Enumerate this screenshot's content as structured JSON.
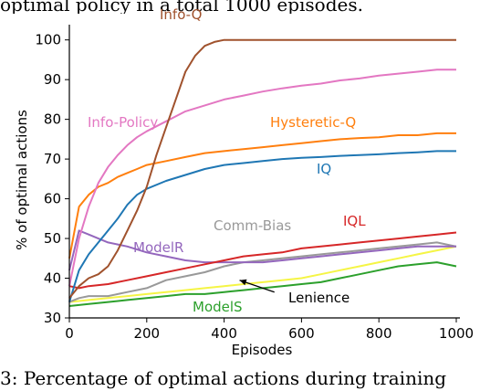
{
  "caption_top": "optimal policy in a total 1000 episodes.",
  "caption_bottom": "3: Percentage of optimal actions during training",
  "chart_data": {
    "type": "line",
    "xlabel": "Episodes",
    "ylabel": "% of optimal actions",
    "xlim": [
      0,
      1000
    ],
    "ylim": [
      30,
      102
    ],
    "xticks": [
      0,
      200,
      400,
      600,
      800,
      1000
    ],
    "yticks": [
      30,
      40,
      50,
      60,
      70,
      80,
      90,
      100
    ],
    "grid": false,
    "legend": "inline labels",
    "annotation": {
      "text": "Lenience",
      "arrow_from": [
        530,
        36.5
      ],
      "arrow_to": [
        440,
        39.5
      ]
    },
    "series": [
      {
        "name": "Info-Q",
        "color": "#a0522d",
        "x": [
          0,
          25,
          50,
          75,
          100,
          125,
          150,
          175,
          200,
          225,
          250,
          275,
          300,
          325,
          350,
          375,
          400,
          450,
          500,
          600,
          700,
          800,
          900,
          1000
        ],
        "y": [
          35,
          38,
          40,
          41,
          43,
          47,
          52,
          57,
          63,
          71,
          78,
          85,
          92,
          96,
          98.5,
          99.5,
          100,
          100,
          100,
          100,
          100,
          100,
          100,
          100
        ]
      },
      {
        "name": "Info-Policy",
        "color": "#e377c2",
        "x": [
          0,
          25,
          50,
          75,
          100,
          125,
          150,
          175,
          200,
          250,
          300,
          350,
          400,
          450,
          500,
          550,
          600,
          650,
          700,
          750,
          800,
          850,
          900,
          950,
          1000
        ],
        "y": [
          38,
          50,
          58,
          64,
          68,
          71,
          73.5,
          75.5,
          77,
          79.5,
          82,
          83.5,
          85,
          86,
          87,
          87.8,
          88.5,
          89,
          89.8,
          90.3,
          91,
          91.5,
          92,
          92.5,
          92.5
        ]
      },
      {
        "name": "Hysteretic-Q",
        "color": "#ff7f0e",
        "x": [
          0,
          25,
          50,
          75,
          100,
          125,
          150,
          175,
          200,
          250,
          300,
          350,
          400,
          450,
          500,
          550,
          600,
          650,
          700,
          750,
          800,
          850,
          900,
          950,
          1000
        ],
        "y": [
          45,
          58,
          61,
          63,
          64,
          65.5,
          66.5,
          67.5,
          68.5,
          69.5,
          70.5,
          71.5,
          72,
          72.5,
          73,
          73.5,
          74,
          74.5,
          75,
          75.3,
          75.5,
          76,
          76,
          76.5,
          76.5
        ]
      },
      {
        "name": "IQ",
        "color": "#1f77b4",
        "x": [
          0,
          25,
          50,
          75,
          100,
          125,
          150,
          175,
          200,
          250,
          300,
          350,
          400,
          450,
          500,
          550,
          600,
          650,
          700,
          750,
          800,
          850,
          900,
          950,
          1000
        ],
        "y": [
          34,
          42,
          46,
          49,
          52,
          55,
          58.5,
          61,
          62.5,
          64.5,
          66,
          67.5,
          68.5,
          69,
          69.5,
          70,
          70.3,
          70.5,
          70.8,
          71,
          71.2,
          71.5,
          71.7,
          72,
          72
        ]
      },
      {
        "name": "IQL",
        "color": "#d62728",
        "x": [
          0,
          25,
          50,
          100,
          150,
          200,
          250,
          300,
          350,
          400,
          450,
          500,
          550,
          600,
          650,
          700,
          750,
          800,
          850,
          900,
          950,
          1000
        ],
        "y": [
          38,
          37.5,
          38,
          38.5,
          39.5,
          40.5,
          41.5,
          42.5,
          43.5,
          44.5,
          45.5,
          46,
          46.5,
          47.5,
          48,
          48.5,
          49,
          49.5,
          50,
          50.5,
          51,
          51.5
        ]
      },
      {
        "name": "ModelR",
        "color": "#9467bd",
        "x": [
          0,
          25,
          50,
          75,
          100,
          150,
          200,
          250,
          300,
          350,
          400,
          450,
          500,
          550,
          600,
          650,
          700,
          750,
          800,
          850,
          900,
          950,
          1000
        ],
        "y": [
          42,
          52,
          51,
          50,
          49,
          48,
          46.5,
          45.5,
          44.5,
          44,
          44,
          44,
          44,
          44.5,
          45,
          45.5,
          46,
          46.5,
          47,
          47.5,
          48,
          48,
          48
        ]
      },
      {
        "name": "Comm-Bias",
        "color": "#999999",
        "x": [
          0,
          25,
          50,
          100,
          150,
          200,
          250,
          300,
          350,
          400,
          450,
          500,
          550,
          600,
          650,
          700,
          750,
          800,
          850,
          900,
          950,
          1000
        ],
        "y": [
          34,
          35,
          35.5,
          35.5,
          36.5,
          37.5,
          39.5,
          40.5,
          41.5,
          43,
          44,
          44.5,
          45,
          45.5,
          46,
          46.5,
          47,
          47.5,
          48,
          48.5,
          49,
          48
        ]
      },
      {
        "name": "Lenience",
        "color": "#f5f545",
        "x": [
          0,
          50,
          100,
          150,
          200,
          250,
          300,
          350,
          400,
          450,
          500,
          550,
          600,
          650,
          700,
          750,
          800,
          850,
          900,
          950,
          1000
        ],
        "y": [
          34,
          34.5,
          35,
          35.5,
          36,
          36.5,
          37,
          37.5,
          38,
          38.5,
          39,
          39.5,
          40,
          41,
          42,
          43,
          44,
          45,
          46,
          47,
          48
        ]
      },
      {
        "name": "ModelS",
        "color": "#2ca02c",
        "x": [
          0,
          50,
          100,
          150,
          200,
          250,
          300,
          350,
          400,
          450,
          500,
          550,
          600,
          650,
          700,
          750,
          800,
          850,
          900,
          950,
          1000
        ],
        "y": [
          33,
          33.5,
          34,
          34.5,
          35,
          35.5,
          36,
          36,
          36.5,
          37,
          37.5,
          38,
          38.5,
          39,
          40,
          41,
          42,
          43,
          43.5,
          44,
          43
        ]
      }
    ]
  }
}
